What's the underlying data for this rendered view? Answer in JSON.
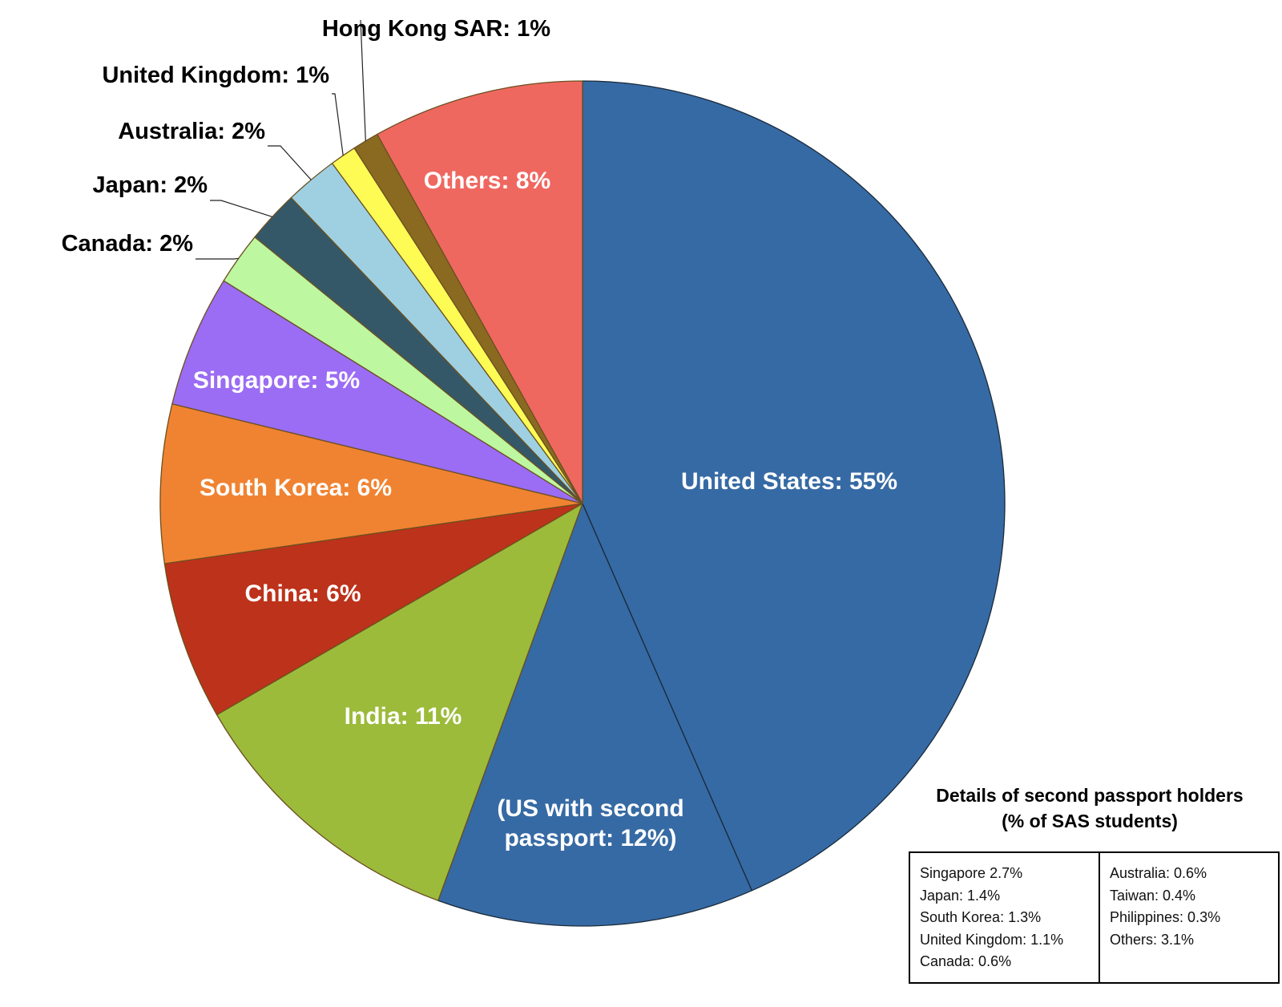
{
  "chart_data": {
    "type": "pie",
    "title": "",
    "slices": [
      {
        "label": "United States: 55%",
        "value": 43,
        "color": "#366aa4",
        "label_color": "#ffffff",
        "label_pos": "inside"
      },
      {
        "label": "(US with second passport: 12%)",
        "value": 12,
        "color": "#366aa4",
        "label_color": "#ffffff",
        "label_pos": "inside"
      },
      {
        "label": "India: 11%",
        "value": 11,
        "color": "#9cbb3b",
        "label_color": "#ffffff",
        "label_pos": "inside"
      },
      {
        "label": "China: 6%",
        "value": 6,
        "color": "#bd321a",
        "label_color": "#ffffff",
        "label_pos": "inside"
      },
      {
        "label": "South Korea: 6%",
        "value": 6,
        "color": "#f08331",
        "label_color": "#ffffff",
        "label_pos": "inside"
      },
      {
        "label": "Singapore: 5%",
        "value": 5,
        "color": "#9b6cf4",
        "label_color": "#ffffff",
        "label_pos": "inside"
      },
      {
        "label": "Canada: 2%",
        "value": 2,
        "color": "#bdf7a0",
        "label_color": "#000000",
        "label_pos": "outside"
      },
      {
        "label": "Japan: 2%",
        "value": 2,
        "color": "#345868",
        "label_color": "#000000",
        "label_pos": "outside"
      },
      {
        "label": "Australia: 2%",
        "value": 2,
        "color": "#9ed0e2",
        "label_color": "#000000",
        "label_pos": "outside"
      },
      {
        "label": "United Kingdom: 1%",
        "value": 1,
        "color": "#fdfb54",
        "label_color": "#000000",
        "label_pos": "outside"
      },
      {
        "label": "Hong Kong SAR: 1%",
        "value": 1,
        "color": "#8a6a20",
        "label_color": "#000000",
        "label_pos": "outside"
      },
      {
        "label": "Others: 8%",
        "value": 8,
        "color": "#ef6860",
        "label_color": "#ffffff",
        "label_pos": "inside"
      }
    ],
    "start": "12 o'clock",
    "direction": "clockwise",
    "legend": "none"
  },
  "details": {
    "title_line1": "Details of second passport holders",
    "title_line2": "(% of SAS students)",
    "left_items": [
      "Singapore 2.7%",
      "Japan: 1.4%",
      "South Korea: 1.3%",
      "United Kingdom: 1.1%",
      "Canada: 0.6%"
    ],
    "right_items": [
      "Australia: 0.6%",
      "Taiwan: 0.4%",
      "Philippines: 0.3%",
      "Others: 3.1%"
    ]
  }
}
